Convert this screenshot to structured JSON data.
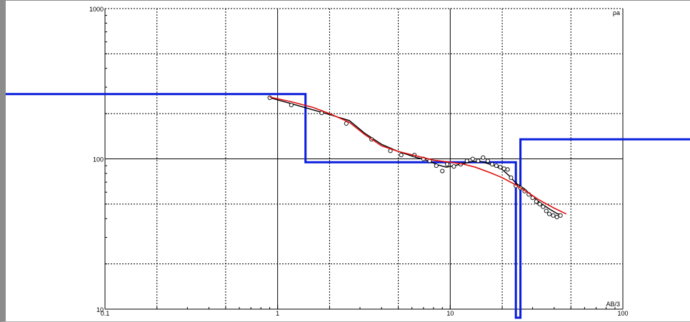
{
  "colors": {
    "model": "#0a1edc",
    "fit": "#e01010",
    "observed_line": "#000000",
    "observed_points": "#000000",
    "grid_major": "#000000",
    "grid_minor": "#000000"
  },
  "chart_data": {
    "type": "line",
    "title": "",
    "xlabel": "AB/3",
    "ylabel": "ρa",
    "xscale": "log",
    "yscale": "log",
    "xlim": [
      0.1,
      100
    ],
    "ylim": [
      10,
      1000
    ],
    "grid": true,
    "x_tick_labels": [
      {
        "value": 0.1,
        "label": "0.1"
      },
      {
        "value": 1,
        "label": "1"
      },
      {
        "value": 10,
        "label": "10"
      },
      {
        "value": 100,
        "label": "100"
      }
    ],
    "y_tick_labels": [
      {
        "value": 10,
        "label": "10"
      },
      {
        "value": 100,
        "label": "100"
      },
      {
        "value": 1000,
        "label": "1000"
      }
    ],
    "observed_points": [
      [
        0.9,
        255
      ],
      [
        1.2,
        228
      ],
      [
        1.8,
        202
      ],
      [
        2.5,
        172
      ],
      [
        3.5,
        135
      ],
      [
        4.5,
        113
      ],
      [
        5.2,
        106
      ],
      [
        6.2,
        106
      ],
      [
        7.0,
        100
      ],
      [
        7.6,
        97
      ],
      [
        8.3,
        90
      ],
      [
        9.0,
        83
      ],
      [
        9.6,
        92
      ],
      [
        10.5,
        89
      ],
      [
        11.5,
        92
      ],
      [
        12.5,
        97
      ],
      [
        13.5,
        100
      ],
      [
        14.5,
        97
      ],
      [
        15.5,
        102
      ],
      [
        16.5,
        97
      ],
      [
        17.5,
        92
      ],
      [
        18.5,
        90
      ],
      [
        19.5,
        88
      ],
      [
        20.5,
        86
      ],
      [
        21.5,
        85
      ],
      [
        22.5,
        75
      ],
      [
        24.0,
        66
      ],
      [
        25.5,
        64
      ],
      [
        27.0,
        61
      ],
      [
        28.5,
        58
      ],
      [
        30.0,
        55
      ],
      [
        31.5,
        52
      ],
      [
        33.0,
        50
      ],
      [
        34.5,
        48
      ],
      [
        36.0,
        45
      ],
      [
        37.5,
        43
      ],
      [
        39.5,
        42
      ],
      [
        41.5,
        41
      ],
      [
        43.5,
        42
      ]
    ],
    "observed_curve": [
      [
        0.9,
        255
      ],
      [
        1.2,
        233
      ],
      [
        1.6,
        212
      ],
      [
        2.0,
        197
      ],
      [
        2.6,
        180
      ],
      [
        3.2,
        148
      ],
      [
        4.0,
        125
      ],
      [
        5.0,
        112
      ],
      [
        6.2,
        103
      ],
      [
        7.5,
        97
      ],
      [
        8.5,
        91
      ],
      [
        9.5,
        88
      ],
      [
        10.5,
        90
      ],
      [
        12.0,
        93
      ],
      [
        13.5,
        96
      ],
      [
        15.0,
        96
      ],
      [
        16.5,
        93
      ],
      [
        18.0,
        90
      ],
      [
        20.0,
        85
      ],
      [
        22.0,
        77
      ],
      [
        24.0,
        69
      ],
      [
        27.0,
        63
      ],
      [
        30.0,
        56
      ],
      [
        34.0,
        50
      ],
      [
        38.0,
        46
      ],
      [
        42.0,
        43
      ],
      [
        44.0,
        43
      ]
    ],
    "series": [
      {
        "type": "step",
        "points": [
          [
            0.1,
            270
          ],
          [
            1.45,
            270
          ],
          [
            1.45,
            95
          ],
          [
            24.0,
            95
          ],
          [
            24.0,
            10
          ],
          [
            25.5,
            10
          ],
          [
            25.5,
            135
          ],
          [
            100,
            135
          ]
        ]
      },
      {
        "type": "line",
        "points": [
          [
            0.9,
            258
          ],
          [
            1.2,
            240
          ],
          [
            1.6,
            220
          ],
          [
            2.0,
            200
          ],
          [
            2.6,
            175
          ],
          [
            3.2,
            145
          ],
          [
            4.0,
            122
          ],
          [
            5.0,
            112
          ],
          [
            6.5,
            104
          ],
          [
            8.0,
            98
          ],
          [
            10.0,
            95
          ],
          [
            12.0,
            92
          ],
          [
            14.0,
            88
          ],
          [
            17.0,
            81
          ],
          [
            20.0,
            75
          ],
          [
            24.0,
            67
          ],
          [
            28.0,
            60
          ],
          [
            33.0,
            53
          ],
          [
            40.0,
            47
          ],
          [
            47.0,
            43
          ]
        ]
      }
    ]
  }
}
